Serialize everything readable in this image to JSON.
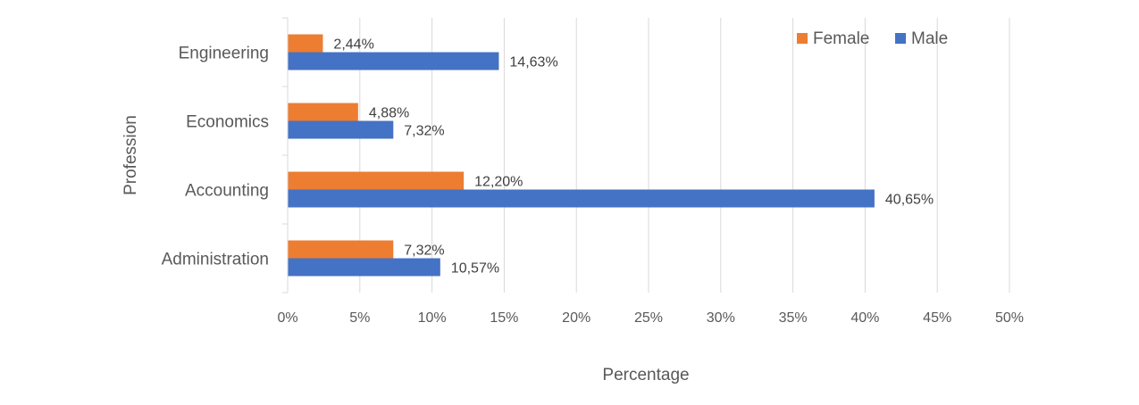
{
  "chart_data": {
    "type": "bar",
    "orientation": "horizontal",
    "categories": [
      "Engineering",
      "Economics",
      "Accounting",
      "Administration"
    ],
    "series": [
      {
        "name": "Female",
        "color": "#ED7D31",
        "values": [
          2.44,
          4.88,
          12.2,
          7.32
        ],
        "labels": [
          "2,44%",
          "4,88%",
          "12,20%",
          "7,32%"
        ]
      },
      {
        "name": "Male",
        "color": "#4472C4",
        "values": [
          14.63,
          7.32,
          40.65,
          10.57
        ],
        "labels": [
          "14,63%",
          "7,32%",
          "40,65%",
          "10,57%"
        ]
      }
    ],
    "x_ticks": [
      0,
      5,
      10,
      15,
      20,
      25,
      30,
      35,
      40,
      45,
      50
    ],
    "x_tick_labels": [
      "0%",
      "5%",
      "10%",
      "15%",
      "20%",
      "25%",
      "30%",
      "35%",
      "40%",
      "45%",
      "50%"
    ],
    "xlim": [
      0,
      50
    ],
    "xlabel": "Percentage",
    "ylabel": "Profession",
    "title": "",
    "grid": "vertical",
    "legend": {
      "placement": "top-right",
      "entries": [
        "Female",
        "Male"
      ]
    }
  }
}
